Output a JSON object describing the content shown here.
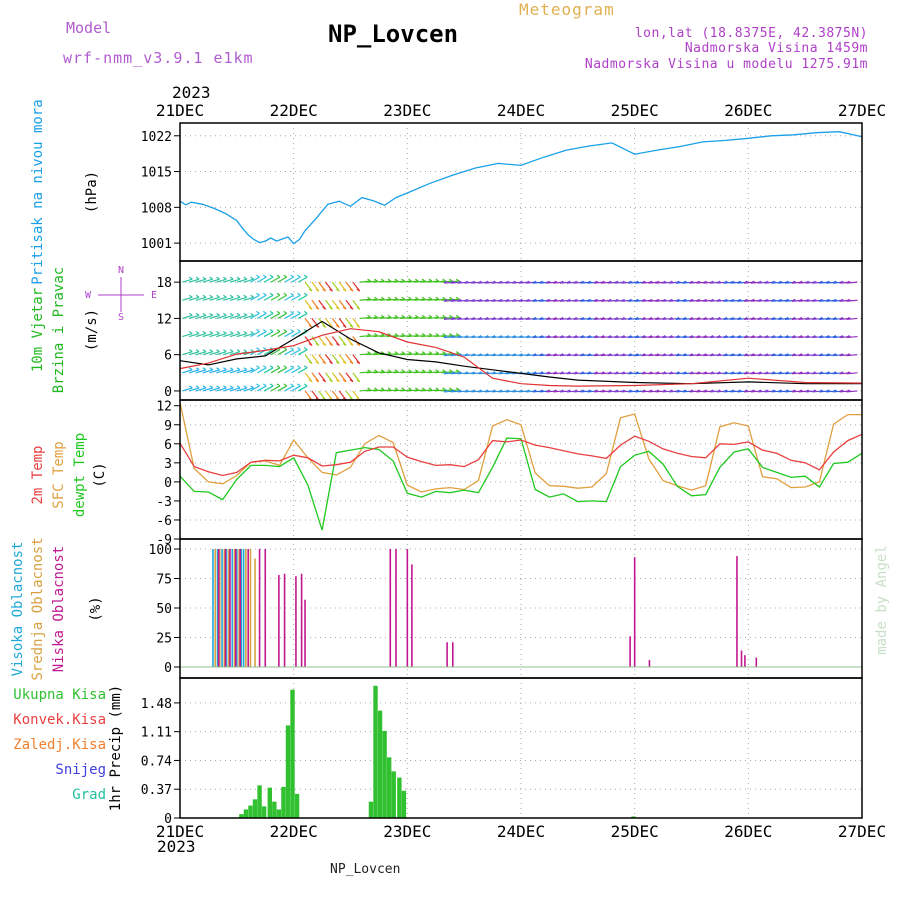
{
  "header": {
    "model_label": "Model",
    "model_name": "wrf-nmm_v3.9.1 e1km",
    "station": "NP_Lovcen",
    "meteogram_label": "Meteogram",
    "lonlat": "lon,lat (18.8375E, 42.3875N)",
    "altitude": "Nadmorska Visina 1459m",
    "altitude_model": "Nadmorska Visina u modelu 1275.91m",
    "year_top": "2023",
    "year_bottom": "2023",
    "footer_station": "NP_Lovcen",
    "watermark": "made by Angel"
  },
  "colors": {
    "model": "#b05cd0",
    "meteogram": "#e0b050",
    "info": "#b040c8",
    "pressure": "#1aa0e8",
    "wind_title": "#20b820",
    "temp2m": "#e84040",
    "sfc": "#e0a040",
    "dew": "#20c820",
    "cloud_high": "#20a8d8",
    "cloud_mid": "#d8a040",
    "cloud_low": "#c01890",
    "precip_total": "#30c030",
    "precip_conv": "#e84040",
    "precip_frz": "#f08030",
    "precip_snow": "#4040e0",
    "precip_hail": "#20c0a0",
    "grid": "#aaaaaa"
  },
  "chart_data": [
    {
      "type": "line",
      "name": "pressure",
      "ylabel_lines": [
        "Pritisak na nivou mora",
        "(hPa)"
      ],
      "ylim": [
        997.5,
        1024.5
      ],
      "yticks": [
        1001,
        1008,
        1015,
        1022
      ],
      "x_days": [
        0,
        0.05,
        0.1,
        0.2,
        0.3,
        0.4,
        0.5,
        0.55,
        0.6,
        0.65,
        0.7,
        0.75,
        0.8,
        0.85,
        0.9,
        0.95,
        1.0,
        1.05,
        1.1,
        1.2,
        1.3,
        1.4,
        1.5,
        1.6,
        1.7,
        1.8,
        1.9,
        2.0,
        2.2,
        2.4,
        2.6,
        2.8,
        3.0,
        3.2,
        3.4,
        3.6,
        3.8,
        4.0,
        4.2,
        4.4,
        4.6,
        4.8,
        5.0,
        5.2,
        5.4,
        5.6,
        5.8,
        6.0
      ],
      "values": [
        1009.2,
        1008.5,
        1009.0,
        1008.6,
        1007.8,
        1006.8,
        1005.4,
        1003.9,
        1002.6,
        1001.7,
        1001.1,
        1001.4,
        1002.0,
        1001.4,
        1001.8,
        1002.2,
        1000.9,
        1001.7,
        1003.4,
        1005.9,
        1008.6,
        1009.2,
        1008.2,
        1009.9,
        1009.3,
        1008.4,
        1009.9,
        1010.8,
        1012.7,
        1014.3,
        1015.7,
        1016.6,
        1016.2,
        1017.8,
        1019.2,
        1020.0,
        1020.6,
        1018.4,
        1019.2,
        1019.9,
        1020.8,
        1021.1,
        1021.5,
        1022.0,
        1022.2,
        1022.6,
        1022.8,
        1021.8
      ]
    },
    {
      "type": "line",
      "name": "wind",
      "ylabel_lines": [
        "10m Vjetar",
        "Brzina i Pravac",
        "(m/s)"
      ],
      "compass": {
        "n": "N",
        "s": "S",
        "w": "W",
        "e": "E"
      },
      "ylim": [
        -1.5,
        21.5
      ],
      "yticks": [
        0,
        6,
        12,
        18
      ],
      "speed_x": [
        0,
        0.25,
        0.5,
        0.75,
        1.0,
        1.25,
        1.5,
        1.75,
        2.0,
        2.25,
        2.5,
        2.75,
        3.0,
        3.25,
        3.5,
        4.0,
        4.5,
        5.0,
        5.5,
        6.0
      ],
      "speed_black": [
        5.0,
        4.3,
        5.3,
        5.8,
        8.6,
        11.5,
        8.6,
        6.3,
        5.2,
        4.8,
        4.1,
        3.5,
        2.9,
        2.3,
        1.8,
        1.4,
        1.2,
        1.5,
        1.2,
        1.2
      ],
      "speed_red": [
        3.7,
        4.6,
        6.1,
        6.7,
        7.5,
        9.2,
        10.3,
        9.8,
        8.1,
        7.2,
        5.6,
        2.1,
        1.2,
        0.9,
        0.8,
        0.9,
        1.2,
        2.1,
        1.4,
        1.3
      ],
      "arrow_level_values": [
        0,
        3,
        6,
        9,
        12,
        15,
        18
      ]
    },
    {
      "type": "line",
      "name": "temperature",
      "ylabel_lines": [
        "2m Temp",
        "SFC Temp",
        "dewpt Temp",
        "(C)"
      ],
      "ylim": [
        -9,
        12.9
      ],
      "yticks": [
        -9,
        -6,
        -3,
        0,
        3,
        6,
        9,
        12
      ],
      "x_days": [
        0,
        0.125,
        0.25,
        0.375,
        0.5,
        0.625,
        0.75,
        0.875,
        1.0,
        1.125,
        1.25,
        1.375,
        1.5,
        1.625,
        1.75,
        1.875,
        2.0,
        2.125,
        2.25,
        2.375,
        2.5,
        2.625,
        2.75,
        2.875,
        3.0,
        3.125,
        3.25,
        3.375,
        3.5,
        3.625,
        3.75,
        3.875,
        4.0,
        4.125,
        4.25,
        4.375,
        4.5,
        4.625,
        4.75,
        4.875,
        5.0,
        5.125,
        5.25,
        5.375,
        5.5,
        5.625,
        5.75,
        5.875,
        6.0
      ],
      "t2m": [
        6.1,
        2.4,
        1.6,
        1.0,
        1.5,
        3.1,
        3.4,
        3.3,
        4.2,
        3.8,
        2.5,
        2.7,
        3.1,
        4.8,
        5.5,
        5.5,
        3.9,
        3.2,
        2.6,
        2.7,
        2.4,
        3.5,
        6.5,
        6.3,
        6.6,
        5.8,
        5.4,
        4.9,
        4.4,
        4.1,
        3.7,
        5.8,
        7.2,
        6.4,
        5.2,
        4.5,
        4.0,
        3.8,
        6.0,
        5.9,
        6.3,
        5.0,
        4.5,
        3.4,
        3.0,
        1.9,
        4.7,
        6.5,
        7.5
      ],
      "sfc": [
        12.5,
        2.1,
        0.0,
        -0.3,
        1.0,
        3.1,
        3.3,
        2.6,
        6.6,
        3.8,
        1.5,
        1.1,
        2.3,
        6.0,
        7.3,
        6.2,
        -0.5,
        -1.6,
        -1.1,
        -0.9,
        -1.2,
        0.2,
        8.8,
        9.8,
        9.0,
        1.4,
        -0.6,
        -0.7,
        -1.0,
        -0.8,
        1.3,
        10.1,
        10.7,
        3.6,
        0.2,
        -0.6,
        -1.3,
        -0.6,
        8.7,
        9.3,
        8.8,
        0.8,
        0.5,
        -0.9,
        -0.8,
        0.0,
        9.1,
        10.6,
        10.6
      ],
      "dew": [
        0.9,
        -1.5,
        -1.6,
        -2.8,
        0.4,
        2.6,
        2.6,
        2.4,
        3.8,
        -0.5,
        -7.6,
        4.6,
        5.0,
        5.4,
        5.1,
        3.3,
        -1.8,
        -2.4,
        -1.5,
        -1.7,
        -1.3,
        -1.7,
        2.3,
        6.9,
        6.8,
        -1.2,
        -2.4,
        -1.9,
        -3.1,
        -3.0,
        -3.1,
        2.4,
        4.2,
        4.8,
        2.8,
        -0.7,
        -2.2,
        -2.0,
        2.3,
        4.7,
        5.2,
        2.3,
        1.5,
        0.7,
        0.9,
        -0.8,
        2.9,
        3.1,
        4.5
      ]
    },
    {
      "type": "bar",
      "name": "clouds",
      "ylabel_lines": [
        "Visoka Oblacnost",
        "Srednja Oblacnost",
        "Niska Oblacnost",
        "(%)"
      ],
      "ylim": [
        0,
        100
      ],
      "yticks": [
        0,
        25,
        50,
        75,
        100
      ],
      "high": [
        [
          0.29,
          100
        ],
        [
          0.33,
          100
        ],
        [
          0.37,
          100
        ],
        [
          0.41,
          100
        ],
        [
          0.46,
          100
        ],
        [
          0.5,
          100
        ],
        [
          0.54,
          100
        ],
        [
          0.56,
          100
        ]
      ],
      "mid": [
        [
          0.31,
          100
        ],
        [
          0.35,
          100
        ],
        [
          0.39,
          100
        ],
        [
          0.43,
          100
        ],
        [
          0.48,
          100
        ],
        [
          0.52,
          100
        ],
        [
          0.58,
          100
        ],
        [
          0.62,
          100
        ],
        [
          0.66,
          92
        ]
      ],
      "low": [
        [
          0.34,
          100
        ],
        [
          0.4,
          100
        ],
        [
          0.44,
          100
        ],
        [
          0.49,
          100
        ],
        [
          0.53,
          100
        ],
        [
          0.6,
          100
        ],
        [
          0.7,
          100
        ],
        [
          0.75,
          100
        ],
        [
          0.87,
          78
        ],
        [
          0.92,
          79
        ],
        [
          1.02,
          77
        ],
        [
          1.07,
          79
        ],
        [
          1.1,
          57
        ],
        [
          1.85,
          100
        ],
        [
          1.9,
          100
        ],
        [
          2.0,
          100
        ],
        [
          2.04,
          87
        ],
        [
          2.35,
          21
        ],
        [
          2.4,
          21
        ],
        [
          3.96,
          26
        ],
        [
          4.0,
          93
        ],
        [
          4.13,
          6
        ],
        [
          4.9,
          94
        ],
        [
          4.94,
          14
        ],
        [
          4.97,
          10
        ],
        [
          5.07,
          8
        ]
      ]
    },
    {
      "type": "bar",
      "name": "precip",
      "legend": [
        "Ukupna Kisa",
        "Konvek.Kisa",
        "Zaledj.Kisa",
        "Snijeg",
        "Grad"
      ],
      "ylabel_lines": [
        "1hr Precip (mm)"
      ],
      "ylim": [
        0,
        1.8
      ],
      "yticks": [
        0,
        0.37,
        0.74,
        1.11,
        1.48
      ],
      "ytick_labels": [
        "0",
        "0.37",
        "0.74",
        "1.11",
        "1.48"
      ],
      "total": [
        [
          0.54,
          0.05
        ],
        [
          0.58,
          0.11
        ],
        [
          0.62,
          0.16
        ],
        [
          0.66,
          0.24
        ],
        [
          0.7,
          0.42
        ],
        [
          0.74,
          0.15
        ],
        [
          0.79,
          0.39
        ],
        [
          0.83,
          0.21
        ],
        [
          0.87,
          0.11
        ],
        [
          0.91,
          0.4
        ],
        [
          0.95,
          1.19
        ],
        [
          0.99,
          1.65
        ],
        [
          1.03,
          0.31
        ],
        [
          1.68,
          0.21
        ],
        [
          1.72,
          1.7
        ],
        [
          1.76,
          1.38
        ],
        [
          1.8,
          1.12
        ],
        [
          1.84,
          0.78
        ],
        [
          1.88,
          0.6
        ],
        [
          1.93,
          0.52
        ],
        [
          1.97,
          0.35
        ],
        [
          3.99,
          0.02
        ]
      ]
    }
  ],
  "x_axis": {
    "labels_top": [
      "21DEC",
      "22DEC",
      "23DEC",
      "24DEC",
      "25DEC",
      "26DEC",
      "27DEC"
    ],
    "labels_bottom": [
      "21DEC",
      "22DEC",
      "23DEC",
      "24DEC",
      "25DEC",
      "26DEC",
      "27DEC"
    ],
    "xlim_days": [
      0,
      6
    ]
  }
}
